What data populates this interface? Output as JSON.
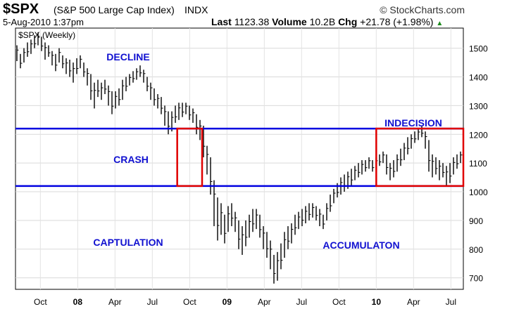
{
  "header": {
    "symbol": "$SPX",
    "name": "(S&P 500 Large Cap Index)",
    "exchange": "INDX",
    "brand": "© StockCharts.com",
    "date": "5-Aug-2010 1:37pm",
    "last_label": "Last",
    "last_value": "1123.38",
    "volume_label": "Volume",
    "volume_value": "10.2B",
    "chg_label": "Chg",
    "chg_value": "+21.78 (+1.98%)",
    "up_icon": "up-triangle-icon"
  },
  "chart_data": {
    "type": "line",
    "series_label": "$SPX (Weekly)",
    "x_ticks": [
      "Oct",
      "08",
      "Apr",
      "Jul",
      "Oct",
      "09",
      "Apr",
      "Jul",
      "Oct",
      "10",
      "Apr",
      "Jul"
    ],
    "y_ticks": [
      700,
      800,
      900,
      1000,
      1100,
      1200,
      1300,
      1400,
      1500
    ],
    "ylim": [
      660,
      1570
    ],
    "x_start": "2007-08",
    "x_end": "2010-08",
    "annotations": [
      "DECLINE",
      "CRASH",
      "CAPTULATION",
      "ACCUMULATON",
      "INDECISION"
    ],
    "hlines": [
      1220,
      1020
    ],
    "boxes": [
      {
        "x0": "2008-09",
        "x1": "2008-11",
        "y0": 1020,
        "y1": 1220
      },
      {
        "x0": "2010-01",
        "x1": "2010-08",
        "y0": 1020,
        "y1": 1220
      }
    ],
    "series": [
      {
        "values": [
          [
            1455,
            1510
          ],
          [
            1430,
            1480
          ],
          [
            1450,
            1500
          ],
          [
            1470,
            1520
          ],
          [
            1480,
            1530
          ],
          [
            1500,
            1545
          ],
          [
            1510,
            1555
          ],
          [
            1490,
            1540
          ],
          [
            1460,
            1520
          ],
          [
            1470,
            1510
          ],
          [
            1440,
            1490
          ],
          [
            1420,
            1480
          ],
          [
            1450,
            1500
          ],
          [
            1430,
            1475
          ],
          [
            1410,
            1465
          ],
          [
            1400,
            1460
          ],
          [
            1380,
            1450
          ],
          [
            1410,
            1465
          ],
          [
            1430,
            1475
          ],
          [
            1400,
            1450
          ],
          [
            1370,
            1430
          ],
          [
            1320,
            1410
          ],
          [
            1290,
            1380
          ],
          [
            1330,
            1390
          ],
          [
            1320,
            1380
          ],
          [
            1340,
            1390
          ],
          [
            1300,
            1370
          ],
          [
            1270,
            1350
          ],
          [
            1290,
            1350
          ],
          [
            1300,
            1360
          ],
          [
            1320,
            1390
          ],
          [
            1350,
            1400
          ],
          [
            1370,
            1410
          ],
          [
            1380,
            1420
          ],
          [
            1390,
            1430
          ],
          [
            1400,
            1440
          ],
          [
            1380,
            1425
          ],
          [
            1350,
            1400
          ],
          [
            1320,
            1380
          ],
          [
            1300,
            1360
          ],
          [
            1290,
            1340
          ],
          [
            1270,
            1330
          ],
          [
            1230,
            1300
          ],
          [
            1200,
            1280
          ],
          [
            1210,
            1280
          ],
          [
            1240,
            1300
          ],
          [
            1250,
            1310
          ],
          [
            1260,
            1310
          ],
          [
            1270,
            1310
          ],
          [
            1250,
            1300
          ],
          [
            1240,
            1290
          ],
          [
            1200,
            1270
          ],
          [
            1180,
            1250
          ],
          [
            1120,
            1230
          ],
          [
            1060,
            1160
          ],
          [
            990,
            1120
          ],
          [
            880,
            1040
          ],
          [
            830,
            980
          ],
          [
            850,
            960
          ],
          [
            820,
            920
          ],
          [
            860,
            950
          ],
          [
            880,
            960
          ],
          [
            860,
            930
          ],
          [
            800,
            900
          ],
          [
            780,
            880
          ],
          [
            810,
            900
          ],
          [
            840,
            920
          ],
          [
            860,
            940
          ],
          [
            870,
            940
          ],
          [
            840,
            920
          ],
          [
            800,
            880
          ],
          [
            770,
            860
          ],
          [
            730,
            830
          ],
          [
            680,
            780
          ],
          [
            690,
            790
          ],
          [
            730,
            820
          ],
          [
            770,
            860
          ],
          [
            800,
            880
          ],
          [
            820,
            890
          ],
          [
            850,
            920
          ],
          [
            870,
            930
          ],
          [
            880,
            940
          ],
          [
            890,
            950
          ],
          [
            900,
            960
          ],
          [
            910,
            960
          ],
          [
            900,
            950
          ],
          [
            880,
            940
          ],
          [
            870,
            920
          ],
          [
            900,
            960
          ],
          [
            930,
            990
          ],
          [
            960,
            1010
          ],
          [
            980,
            1030
          ],
          [
            990,
            1050
          ],
          [
            1000,
            1060
          ],
          [
            1010,
            1070
          ],
          [
            1020,
            1080
          ],
          [
            1040,
            1090
          ],
          [
            1050,
            1100
          ],
          [
            1060,
            1110
          ],
          [
            1070,
            1110
          ],
          [
            1080,
            1120
          ],
          [
            1070,
            1110
          ],
          [
            1080,
            1120
          ],
          [
            1090,
            1130
          ],
          [
            1100,
            1140
          ],
          [
            1060,
            1130
          ],
          [
            1040,
            1100
          ],
          [
            1050,
            1110
          ],
          [
            1070,
            1130
          ],
          [
            1090,
            1150
          ],
          [
            1110,
            1170
          ],
          [
            1130,
            1190
          ],
          [
            1150,
            1200
          ],
          [
            1170,
            1210
          ],
          [
            1180,
            1220
          ],
          [
            1190,
            1230
          ],
          [
            1150,
            1210
          ],
          [
            1070,
            1180
          ],
          [
            1050,
            1130
          ],
          [
            1060,
            1120
          ],
          [
            1040,
            1110
          ],
          [
            1050,
            1100
          ],
          [
            1020,
            1090
          ],
          [
            1030,
            1100
          ],
          [
            1060,
            1120
          ],
          [
            1080,
            1130
          ],
          [
            1100,
            1140
          ]
        ]
      }
    ]
  }
}
